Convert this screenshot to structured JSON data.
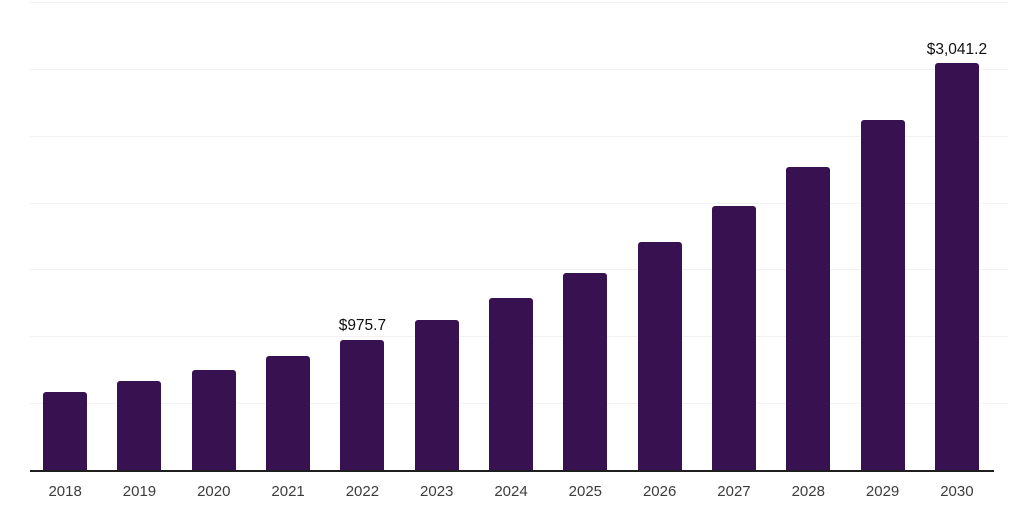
{
  "chart_data": {
    "type": "bar",
    "title": "",
    "xlabel": "",
    "ylabel": "",
    "categories": [
      "2018",
      "2019",
      "2020",
      "2021",
      "2022",
      "2023",
      "2024",
      "2025",
      "2026",
      "2027",
      "2028",
      "2029",
      "2030"
    ],
    "values": [
      585,
      663,
      748,
      851,
      975.7,
      1121,
      1286,
      1474,
      1702,
      1972,
      2268,
      2621,
      3041.2
    ],
    "data_labels": [
      null,
      null,
      null,
      null,
      "$975.7",
      null,
      null,
      null,
      null,
      null,
      null,
      null,
      "$3,041.2"
    ],
    "ylim": [
      0,
      3500
    ],
    "gridline_step": 500,
    "grid": true,
    "legend": "none",
    "y_axis_labels_visible": false,
    "colors": {
      "bar": "#371150",
      "axis_line": "#1f1f1f",
      "gridline": "#f2f2f2",
      "tick_label": "#3c3c3c",
      "value_label": "#111111",
      "background": "#ffffff"
    }
  }
}
